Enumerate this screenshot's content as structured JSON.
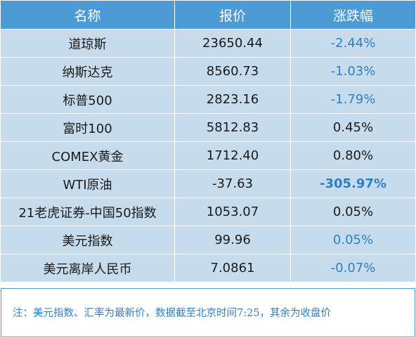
{
  "table": {
    "headers": [
      "名称",
      "报价",
      "涨跌幅"
    ],
    "rows": [
      {
        "name": "道琼斯",
        "price": "23650.44",
        "change": "-2.44%",
        "change_style": "blue"
      },
      {
        "name": "纳斯达克",
        "price": "8560.73",
        "change": "-1.03%",
        "change_style": "blue"
      },
      {
        "name": "标普500",
        "price": "2823.16",
        "change": "-1.79%",
        "change_style": "blue"
      },
      {
        "name": "富时100",
        "price": "5812.83",
        "change": "0.45%",
        "change_style": "dark"
      },
      {
        "name": "COMEX黄金",
        "price": "1712.40",
        "change": "0.80%",
        "change_style": "dark"
      },
      {
        "name": "WTI原油",
        "price": "-37.63",
        "change": "-305.97%",
        "change_style": "blue bold"
      },
      {
        "name": "21老虎证券-中国50指数",
        "price": "1053.07",
        "change": "0.05%",
        "change_style": "dark"
      },
      {
        "name": "美元指数",
        "price": "99.96",
        "change": "0.05%",
        "change_style": "blue"
      },
      {
        "name": "美元离岸人民币",
        "price": "7.0861",
        "change": "-0.07%",
        "change_style": "blue"
      }
    ]
  },
  "footnote": "注：美元指数、汇率为最新价，数据截至北京时间7:25，其余为收盘价",
  "colors": {
    "header_bg": "#4d9bd4",
    "row_bg": "#c6dced",
    "change_blue": "#2f7fc4",
    "text_dark": "#1a1a1a"
  }
}
